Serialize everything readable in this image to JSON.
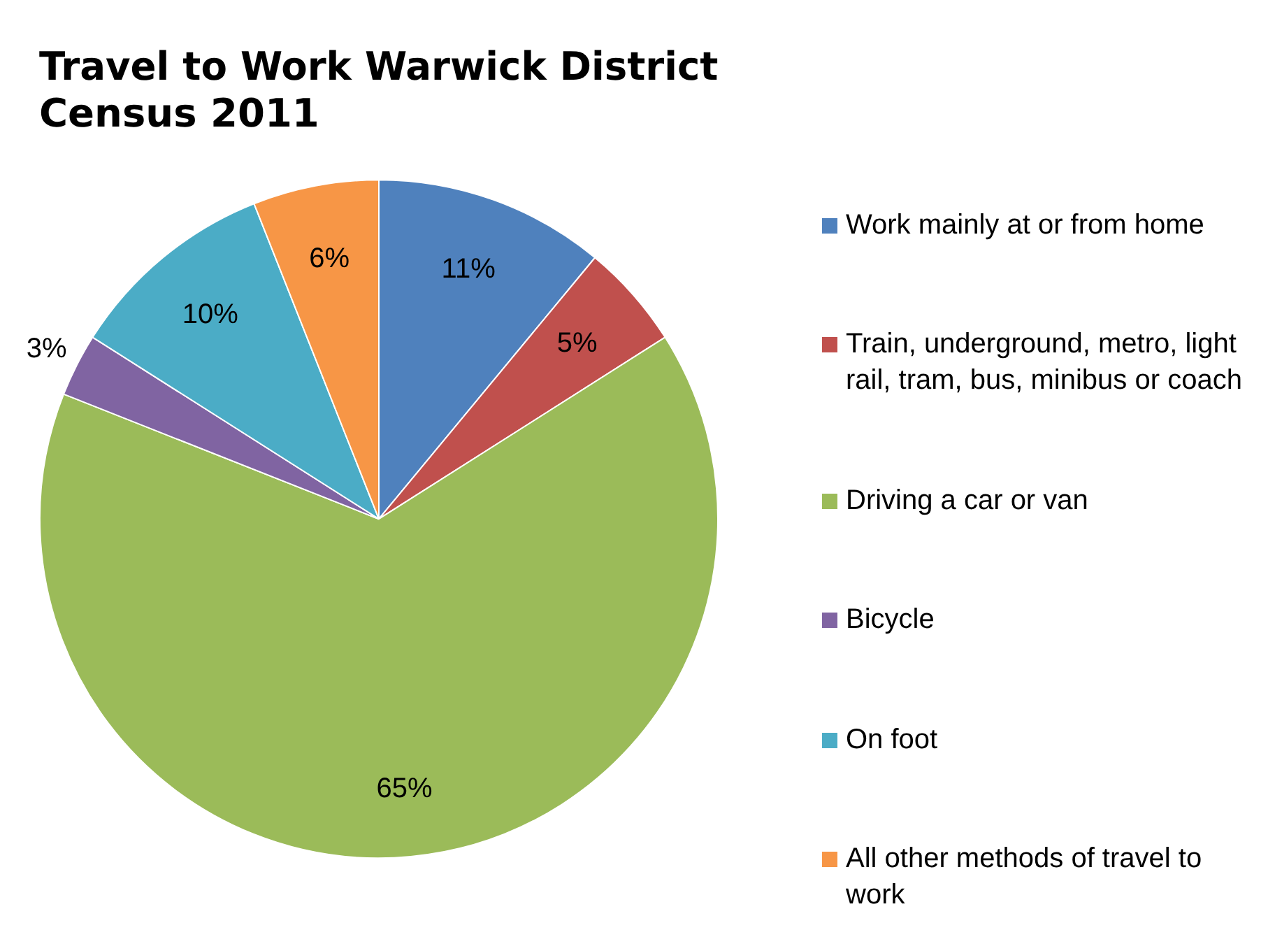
{
  "chart_data": {
    "type": "pie",
    "title": "Travel to Work Warwick District\nCensus 2011",
    "categories": [
      "Work mainly at or from home",
      "Train, underground, metro, light rail, tram, bus, minibus or coach",
      "Driving a car or van",
      "Bicycle",
      "On foot",
      "All other methods of travel to work"
    ],
    "values": [
      11,
      5,
      65,
      3,
      10,
      6
    ],
    "value_labels": [
      "11%",
      "5%",
      "65%",
      "3%",
      "10%",
      "6%"
    ],
    "colors": [
      "#4f81bd",
      "#c0504d",
      "#9bbb59",
      "#8064a2",
      "#4bacc6",
      "#f79646"
    ],
    "legend": "right"
  }
}
